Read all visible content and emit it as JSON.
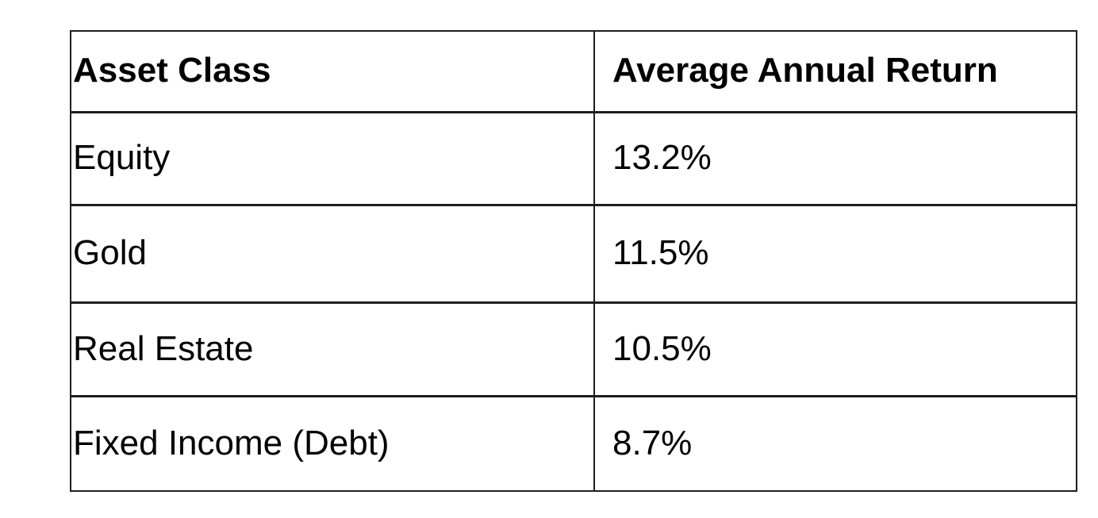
{
  "chart_data": {
    "type": "table",
    "columns": [
      "Asset Class",
      "Average Annual Return"
    ],
    "rows": [
      [
        "Equity",
        "13.2%"
      ],
      [
        "Gold",
        "11.5%"
      ],
      [
        "Real Estate",
        "10.5%"
      ],
      [
        "Fixed Income (Debt)",
        "8.7%"
      ]
    ],
    "categories": [
      "Equity",
      "Gold",
      "Real Estate",
      "Fixed Income (Debt)"
    ],
    "values": [
      13.2,
      11.5,
      10.5,
      8.7
    ],
    "unit": "%",
    "legend": "none",
    "grid": "full-borders"
  },
  "colors": {
    "background": "#ffffff",
    "border": "#1e1e1e",
    "text": "#000000"
  }
}
